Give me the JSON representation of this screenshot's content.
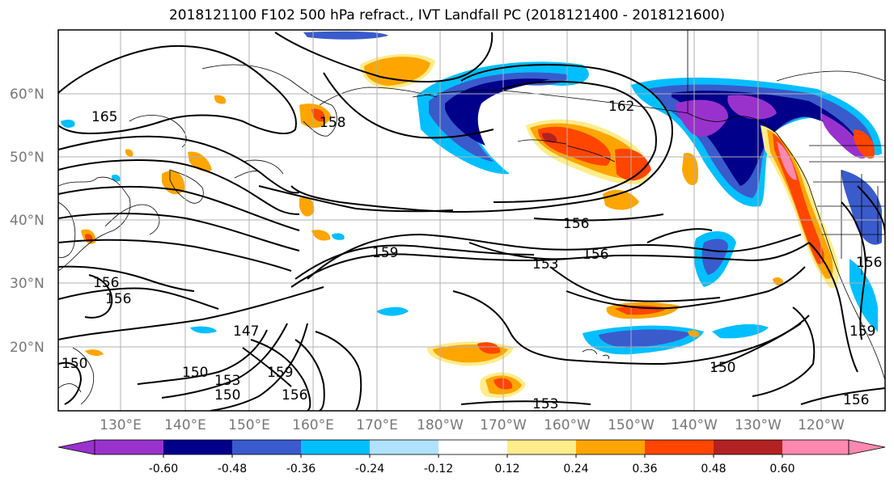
{
  "title": "2018121100 F102 500 hPa refract., IVT Landfall PC (2018121400 - 2018121600)",
  "lat_labels": [
    "60°N",
    "50°N",
    "40°N",
    "30°N",
    "20°N"
  ],
  "lon_labels": [
    "130°E",
    "140°E",
    "150°E",
    "160°E",
    "170°E",
    "180°W",
    "170°W",
    "160°W",
    "150°W",
    "140°W",
    "130°W",
    "120°W"
  ],
  "contour_labels": [
    "165",
    "162",
    "158",
    "156",
    "156",
    "159",
    "153",
    "156",
    "156",
    "147",
    "150",
    "153",
    "150",
    "159",
    "156",
    "153",
    "150",
    "156",
    "159",
    "156",
    "150"
  ],
  "colorbar": {
    "ticks": [
      "-0.60",
      "-0.48",
      "-0.36",
      "-0.24",
      "-0.12",
      "0.12",
      "0.24",
      "0.36",
      "0.48",
      "0.60"
    ],
    "colors": [
      "#9932cc",
      "#00008b",
      "#3a5bcc",
      "#00bfff",
      "#b0e2ff",
      "#ffffff",
      "#ffec8b",
      "#ffa500",
      "#ff4500",
      "#b22222",
      "#ff88b0"
    ]
  }
}
